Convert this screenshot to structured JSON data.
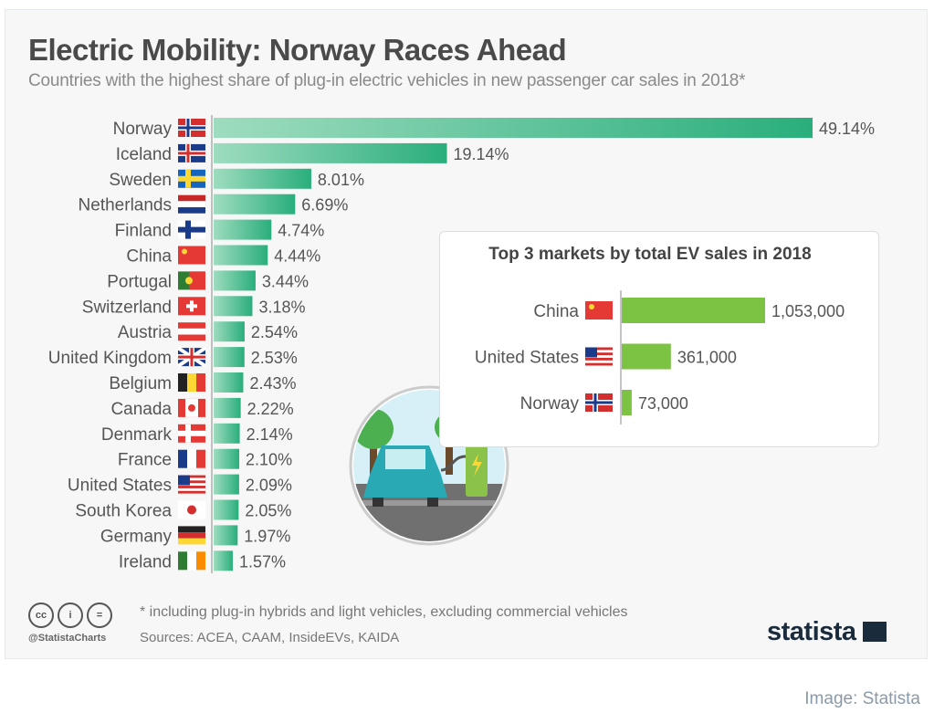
{
  "title": "Electric Mobility: Norway Races Ahead",
  "subtitle": "Countries with the highest share of plug-in electric vehicles in new passenger car sales in 2018*",
  "chart_data": [
    {
      "type": "bar",
      "orientation": "horizontal",
      "unit": "%",
      "categories": [
        "Norway",
        "Iceland",
        "Sweden",
        "Netherlands",
        "Finland",
        "China",
        "Portugal",
        "Switzerland",
        "Austria",
        "United Kingdom",
        "Belgium",
        "Canada",
        "Denmark",
        "France",
        "United States",
        "South Korea",
        "Germany",
        "Ireland"
      ],
      "values": [
        49.14,
        19.14,
        8.01,
        6.69,
        4.74,
        4.44,
        3.44,
        3.18,
        2.54,
        2.53,
        2.43,
        2.22,
        2.14,
        2.1,
        2.09,
        2.05,
        1.97,
        1.57
      ],
      "value_labels": [
        "49.14%",
        "19.14%",
        "8.01%",
        "6.69%",
        "4.74%",
        "4.44%",
        "3.44%",
        "3.18%",
        "2.54%",
        "2.53%",
        "2.43%",
        "2.22%",
        "2.14%",
        "2.10%",
        "2.09%",
        "2.05%",
        "1.97%",
        "1.57%"
      ],
      "color": "#3dba8a",
      "grid": false
    },
    {
      "type": "bar",
      "orientation": "horizontal",
      "title": "Top 3 markets by total EV sales in 2018",
      "categories": [
        "China",
        "United States",
        "Norway"
      ],
      "values": [
        1053000,
        361000,
        73000
      ],
      "value_labels": [
        "1,053,000",
        "361,000",
        "73,000"
      ],
      "color": "#7cc243",
      "grid": false
    }
  ],
  "footer": {
    "note": "* including plug-in hybrids and light vehicles, excluding commercial vehicles",
    "sources": "Sources: ACEA, CAAM, InsideEVs, KAIDA",
    "handle": "@StatistaCharts",
    "logo": "statista",
    "credit": "Image: Statista",
    "license_icons": [
      "cc",
      "by",
      "nd"
    ]
  }
}
